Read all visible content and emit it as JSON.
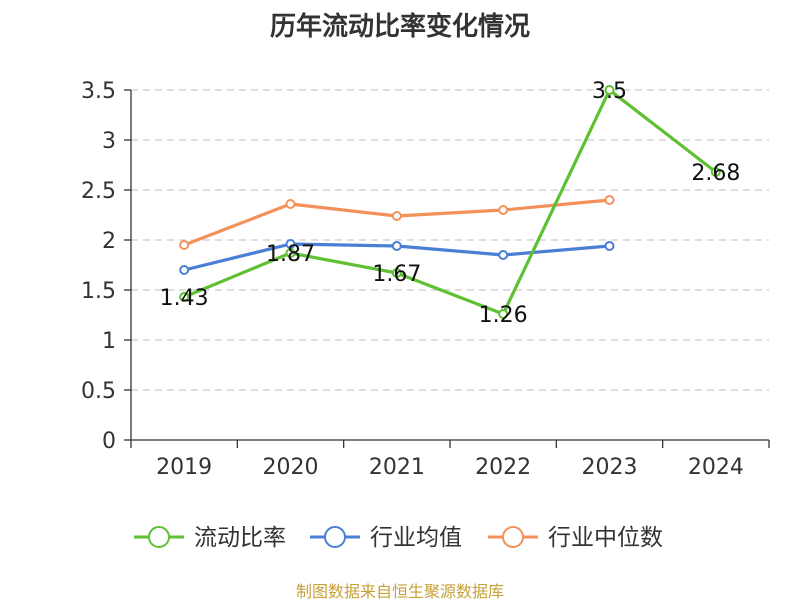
{
  "chart_data": {
    "type": "line",
    "title": "历年流动比率变化情况",
    "categories": [
      "2019",
      "2020",
      "2021",
      "2022",
      "2023",
      "2024"
    ],
    "series": [
      {
        "name": "流动比率",
        "color": "#5ec032",
        "values": [
          1.43,
          1.87,
          1.67,
          1.26,
          3.5,
          2.68
        ],
        "data_labels": [
          "1.43",
          "1.87",
          "1.67",
          "1.26",
          "3.5",
          "2.68"
        ]
      },
      {
        "name": "行业均值",
        "color": "#4a7fd6",
        "values": [
          1.7,
          1.96,
          1.94,
          1.85,
          1.94,
          null
        ]
      },
      {
        "name": "行业中位数",
        "color": "#f4915a",
        "values": [
          1.95,
          2.36,
          2.24,
          2.3,
          2.4,
          null
        ]
      }
    ],
    "y_ticks": [
      "0",
      "0.5",
      "1",
      "1.5",
      "2",
      "2.5",
      "3",
      "3.5"
    ],
    "ylim": [
      0,
      3.5
    ],
    "grid": true,
    "legend_position": "bottom",
    "xlabel": "",
    "ylabel": ""
  },
  "source_note": "制图数据来自恒生聚源数据库"
}
